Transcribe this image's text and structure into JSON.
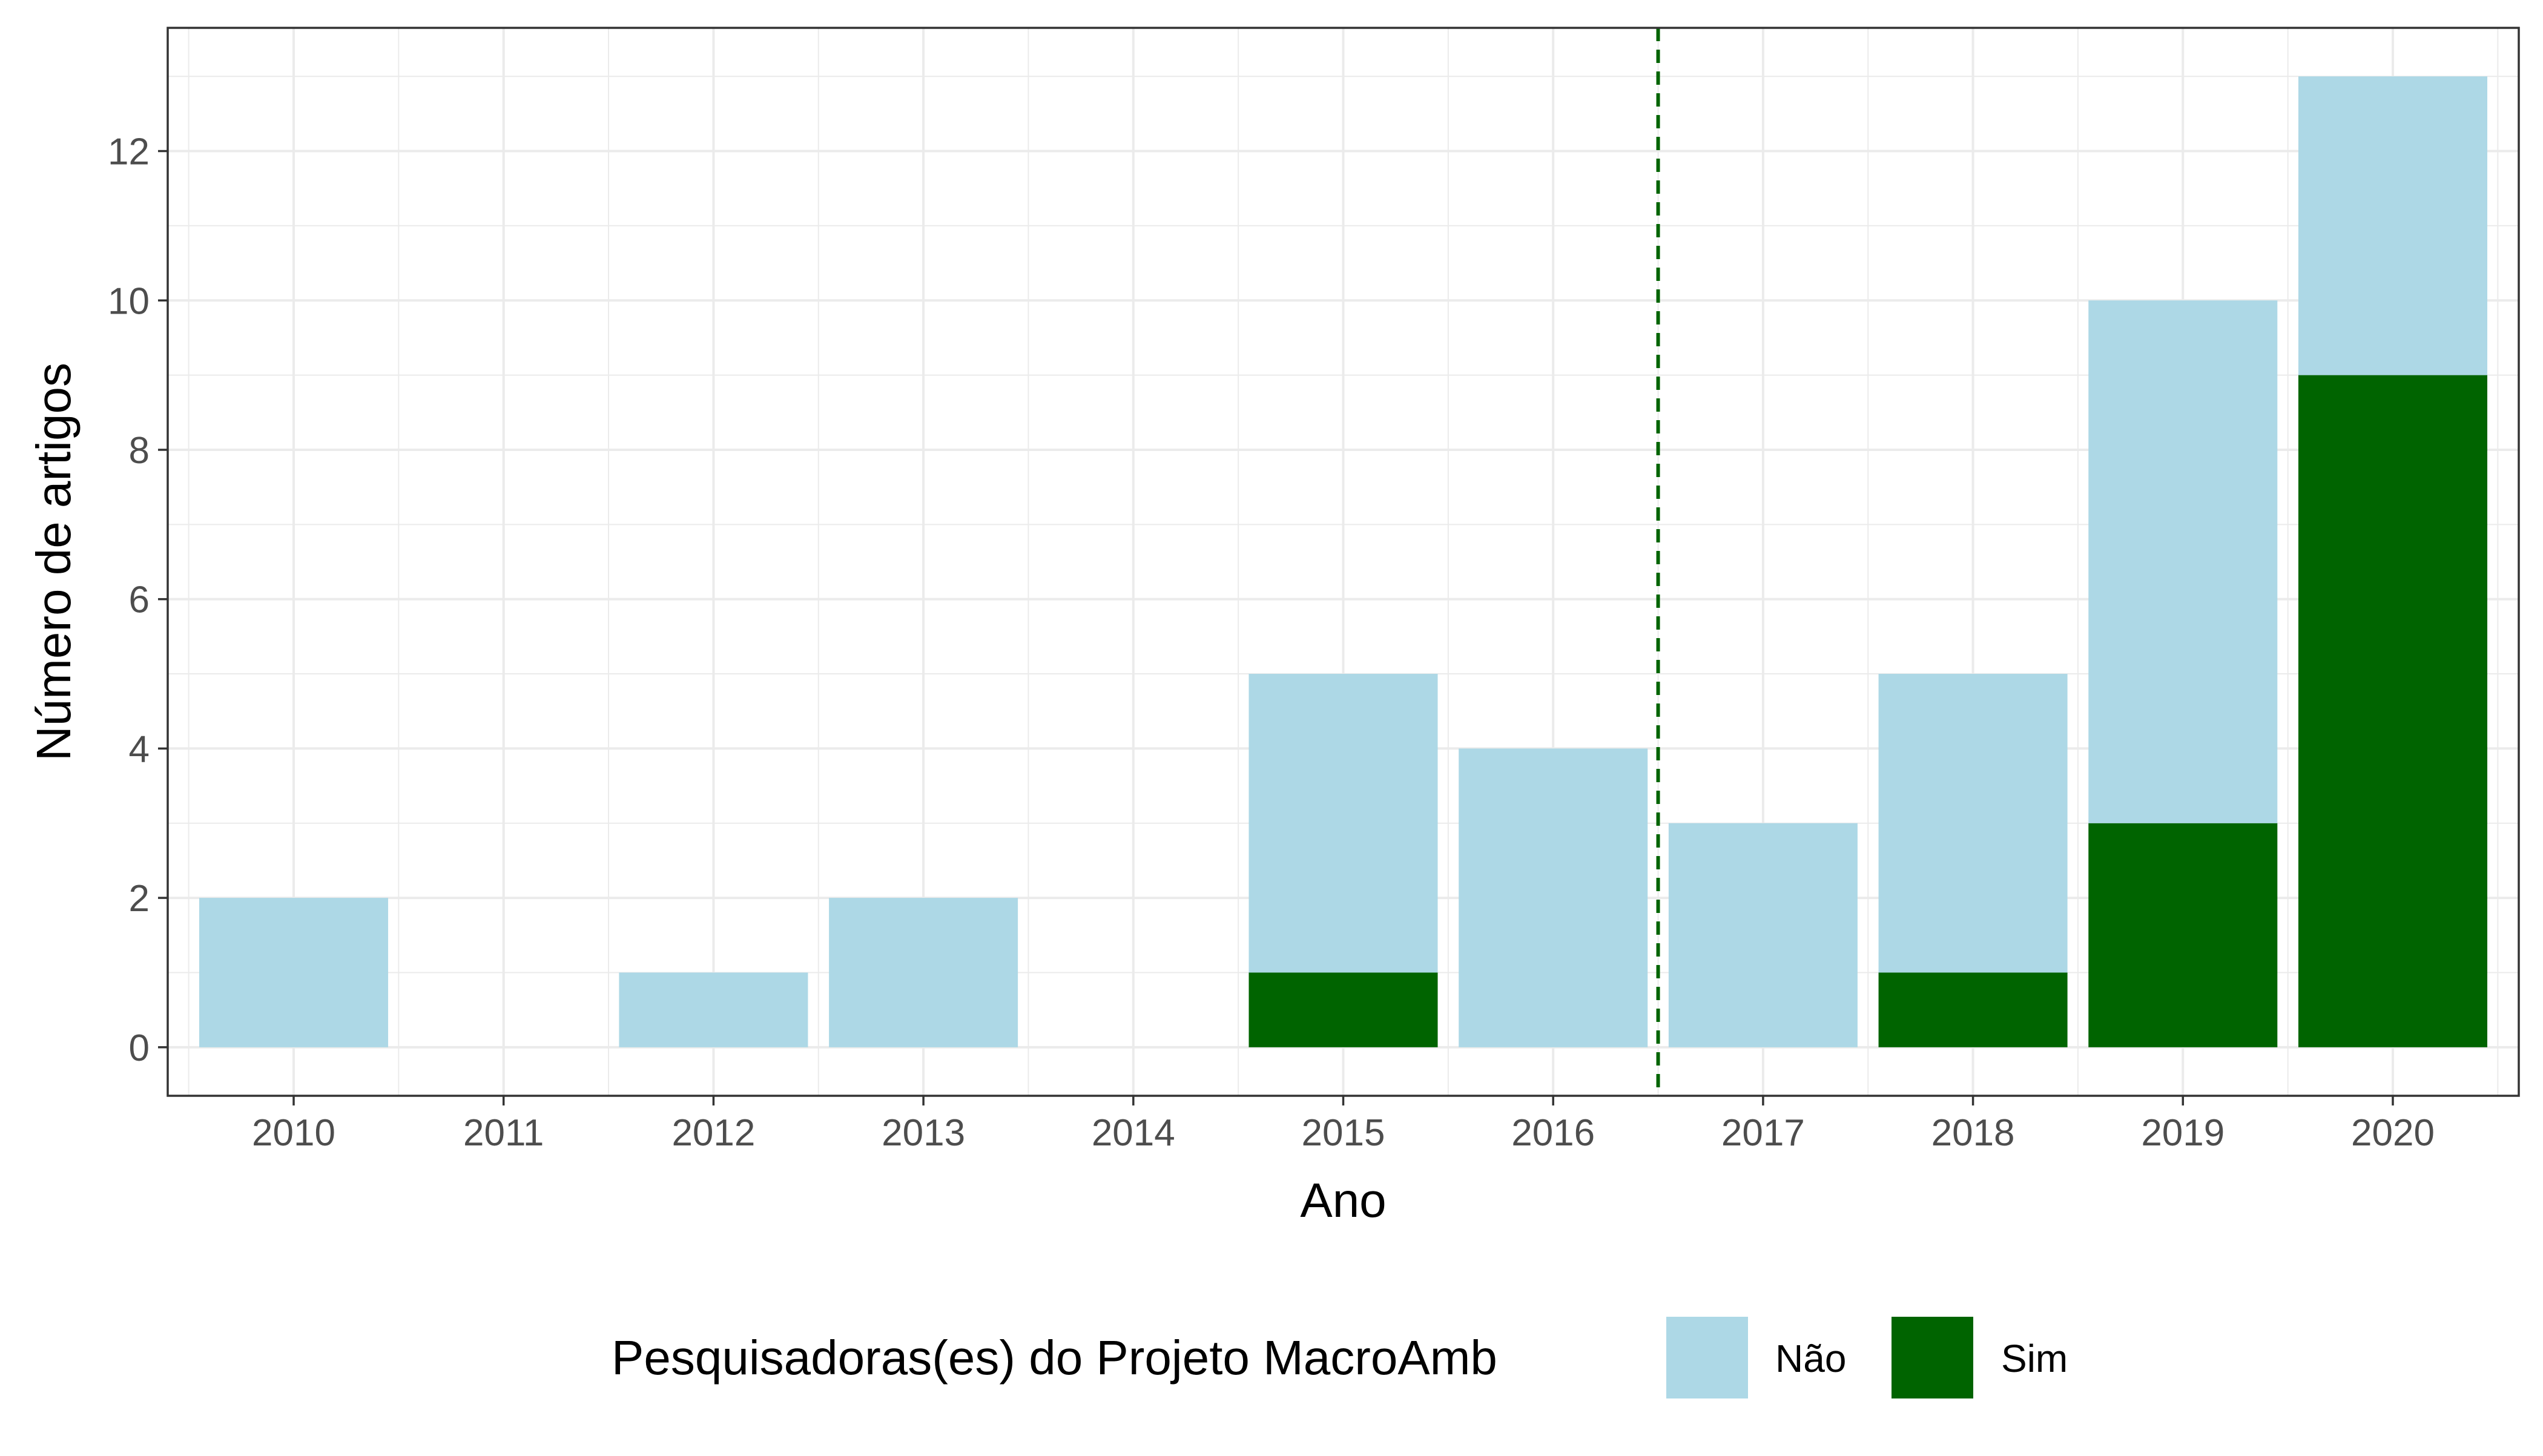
{
  "chart_data": {
    "type": "bar",
    "stacked": true,
    "categories": [
      "2010",
      "2011",
      "2012",
      "2013",
      "2014",
      "2015",
      "2016",
      "2017",
      "2018",
      "2019",
      "2020"
    ],
    "series": [
      {
        "name": "Sim",
        "color": "#006400",
        "values": [
          0,
          0,
          0,
          0,
          0,
          1,
          0,
          0,
          1,
          3,
          9
        ]
      },
      {
        "name": "Não",
        "color": "#ADD8E6",
        "values": [
          2,
          0,
          1,
          2,
          0,
          4,
          4,
          3,
          4,
          7,
          4
        ]
      }
    ],
    "xlabel": "Ano",
    "ylabel": "Número de artigos",
    "ylim": [
      -0.65,
      13.65
    ],
    "yticks": [
      0,
      2,
      4,
      6,
      8,
      10,
      12
    ],
    "grid": true,
    "reference_line": {
      "x_between": [
        "2016",
        "2017"
      ],
      "style": "dashed",
      "color": "#006400"
    },
    "legend": {
      "title": "Pesquisadoras(es) do Projeto MacroAmb",
      "position": "bottom",
      "items": [
        {
          "label": "Não",
          "color": "#ADD8E6"
        },
        {
          "label": "Sim",
          "color": "#006400"
        }
      ]
    }
  }
}
